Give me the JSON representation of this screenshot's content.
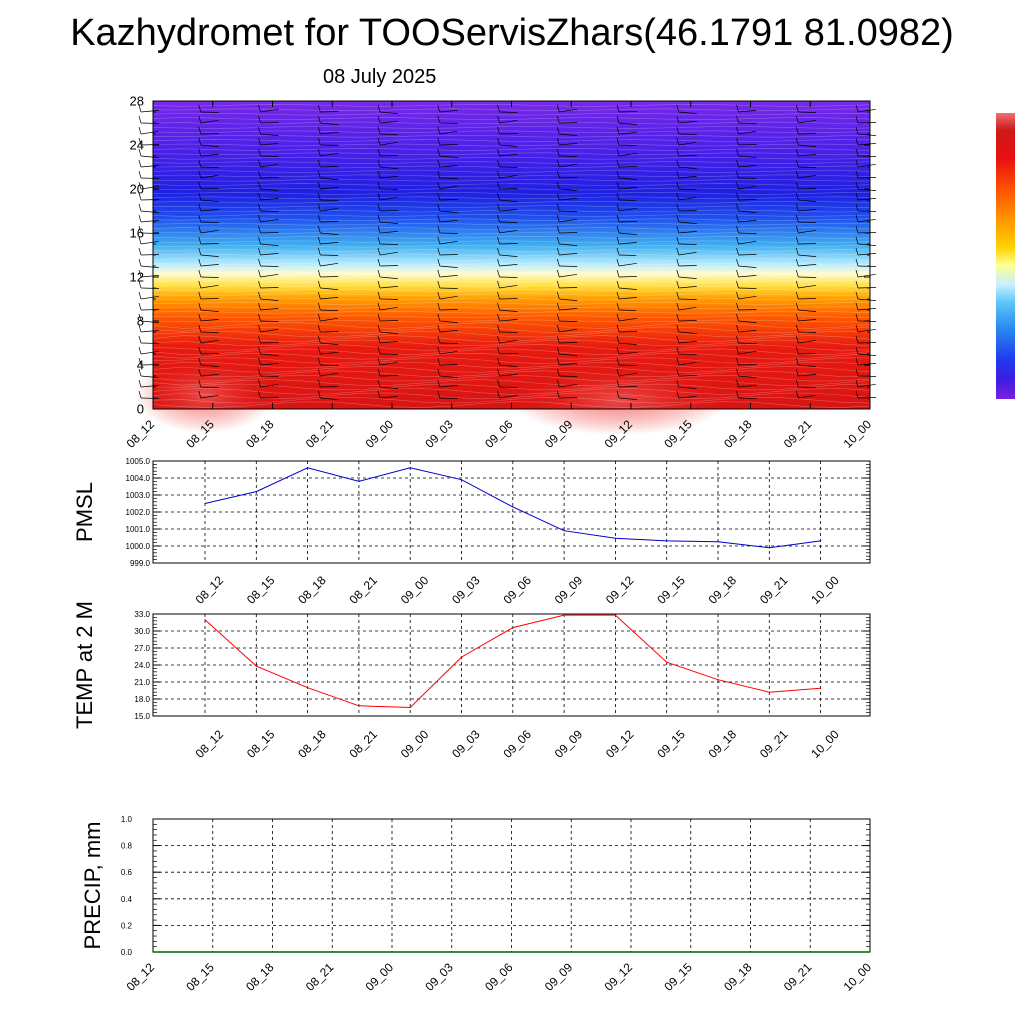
{
  "title": "Kazhydromet for TOOServisZhars(46.1791 81.0982)",
  "subtitle": "08 July 2025",
  "time_labels": [
    "08_12",
    "08_15",
    "08_18",
    "08_21",
    "09_00",
    "09_03",
    "09_06",
    "09_09",
    "09_12",
    "09_15",
    "09_18",
    "09_21",
    "10_00"
  ],
  "chart_data": [
    {
      "type": "heatmap",
      "description_key": "vertical cross-section",
      "y_ticks": [
        0,
        4,
        8,
        12,
        16,
        20,
        24,
        28
      ],
      "ylim": [
        0,
        28
      ],
      "x": [
        "08_12",
        "08_15",
        "08_18",
        "08_21",
        "09_00",
        "09_03",
        "09_06",
        "09_09",
        "09_12",
        "09_15",
        "09_18",
        "09_21",
        "10_00"
      ],
      "wind_barbs": true,
      "colorbar": [
        "#7a20e0",
        "#3a1ee0",
        "#1f3cf0",
        "#2a8cf0",
        "#5ec8f8",
        "#c8f0ff",
        "#ffff90",
        "#ffd200",
        "#ff9a00",
        "#ff5a00",
        "#e81010",
        "#cc1a1a",
        "#f07070"
      ]
    },
    {
      "type": "line",
      "ylabel": "PMSL",
      "ylim": [
        999.0,
        1005.0
      ],
      "y_ticks": [
        "999.0",
        "1000.0",
        "1001.0",
        "1002.0",
        "1003.0",
        "1004.0",
        "1005.0"
      ],
      "x": [
        "08_12",
        "08_15",
        "08_18",
        "08_21",
        "09_00",
        "09_03",
        "09_06",
        "09_09",
        "09_12",
        "09_15",
        "09_18",
        "09_21",
        "10_00"
      ],
      "values": [
        1002.5,
        1003.2,
        1004.6,
        1003.8,
        1004.6,
        1003.9,
        1002.3,
        1000.9,
        1000.45,
        1000.3,
        1000.25,
        999.9,
        1000.3
      ],
      "color": "#0000cc"
    },
    {
      "type": "line",
      "ylabel": "TEMP at 2 M",
      "ylim": [
        15.0,
        33.0
      ],
      "y_ticks": [
        "15.0",
        "18.0",
        "21.0",
        "24.0",
        "27.0",
        "30.0",
        "33.0"
      ],
      "x": [
        "08_12",
        "08_15",
        "08_18",
        "08_21",
        "09_00",
        "09_03",
        "09_06",
        "09_09",
        "09_12",
        "09_15",
        "09_18",
        "09_21",
        "10_00"
      ],
      "values": [
        32.0,
        23.8,
        20.0,
        16.8,
        16.5,
        25.4,
        30.6,
        32.8,
        32.8,
        24.5,
        21.4,
        19.2,
        19.9
      ],
      "color": "#ff0000"
    },
    {
      "type": "line",
      "ylabel": "PRECIP, mm",
      "ylim": [
        0.0,
        1.0
      ],
      "y_ticks": [
        "0.0",
        "0.2",
        "0.4",
        "0.6",
        "0.8",
        "1.0"
      ],
      "x": [
        "08_12",
        "08_15",
        "08_18",
        "08_21",
        "09_00",
        "09_03",
        "09_06",
        "09_09",
        "09_12",
        "09_15",
        "09_18",
        "09_21",
        "10_00"
      ],
      "values": [
        0,
        0,
        0,
        0,
        0,
        0,
        0,
        0,
        0,
        0,
        0,
        0,
        0
      ],
      "color": "#006400"
    }
  ]
}
